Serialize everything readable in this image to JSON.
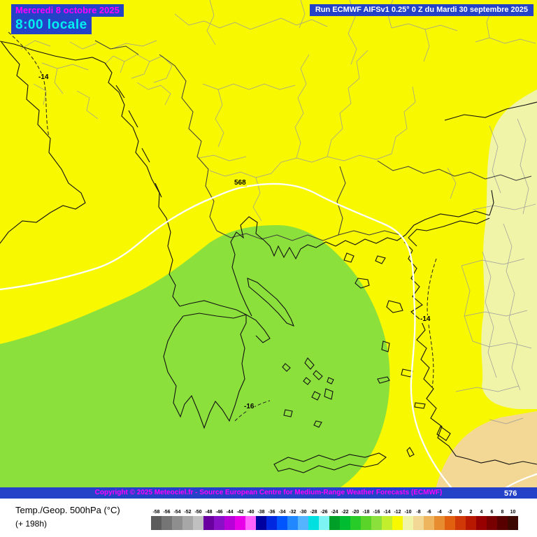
{
  "header": {
    "date": "Mercredi 8 octobre 2025",
    "time": "8:00 locale",
    "run_info": "Run ECMWF AIFSv1 0.25° 0 Z du Mardi 30 septembre 2025"
  },
  "map": {
    "labels": [
      {
        "text": "568",
        "type": "geopotential-contour"
      },
      {
        "text": "576",
        "type": "geopotential-contour"
      },
      {
        "text": "-14",
        "type": "isotherm"
      },
      {
        "text": "-14",
        "type": "isotherm"
      },
      {
        "text": "-16",
        "type": "isotherm"
      }
    ],
    "colors": {
      "band_minus12_yellow": "#f8f800",
      "band_minus16_green": "#8ce03c",
      "band_minus10_pale": "#f0f4a8",
      "band_minus8_tan": "#f2d894",
      "geopotential_contour": "#ffffff",
      "coastline": "#111111",
      "admin_border": "#9b9b9b"
    }
  },
  "footer": {
    "copyright": "Copyright © 2025 Meteociel.fr - Source European Centre for Medium-Range Weather Forecasts (ECMWF)"
  },
  "legend": {
    "title": "Temp./Geop. 500hPa (°C)",
    "forecast_hour": "(+ 198h)",
    "unit": "°C",
    "scale_values": [
      -58,
      -56,
      -54,
      -52,
      -50,
      -48,
      -46,
      -44,
      -42,
      -40,
      -38,
      -36,
      -34,
      -32,
      -30,
      -28,
      -26,
      -24,
      -22,
      -20,
      -18,
      -16,
      -14,
      -12,
      -10,
      -8,
      -6,
      -4,
      -2,
      0,
      2,
      4,
      6,
      8,
      10
    ],
    "scale_colors": [
      "#5c5c5c",
      "#757575",
      "#8e8e8e",
      "#a7a7a7",
      "#c0c0c0",
      "#6a00a0",
      "#8a10c8",
      "#b800d8",
      "#e800e8",
      "#ff64ff",
      "#0000a0",
      "#0028e0",
      "#0055ff",
      "#2288ff",
      "#55b4ff",
      "#00e0e0",
      "#7df3f3",
      "#00a028",
      "#00bc30",
      "#28cc28",
      "#5ad428",
      "#8ce03c",
      "#c2ee2e",
      "#f8f800",
      "#f0f4a8",
      "#f2d894",
      "#eeb45e",
      "#e88c30",
      "#e06010",
      "#d03808",
      "#b81800",
      "#980000",
      "#780000",
      "#580000",
      "#3c0800"
    ]
  },
  "theme": {
    "panel_blue": "#2442c8",
    "magenta_text": "#ff00ff",
    "cyan_text": "#00f0f0",
    "white_text": "#ffffff"
  }
}
